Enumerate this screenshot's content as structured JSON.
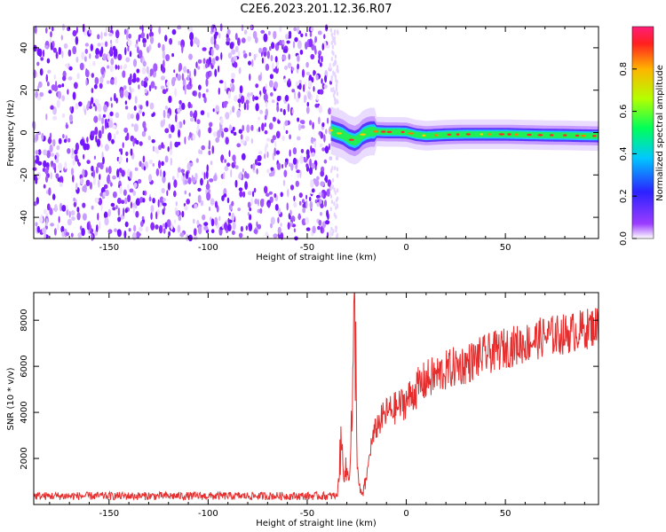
{
  "title": "C2E6.2023.201.12.36.R07",
  "chart_data": [
    {
      "type": "heatmap",
      "xlabel": "Height of straight line (km)",
      "ylabel": "Frequency (Hz)",
      "xlim": [
        -188,
        97
      ],
      "ylim": [
        -50,
        50
      ],
      "xticks": [
        -150,
        -100,
        -50,
        0,
        50
      ],
      "yticks": [
        -40,
        -20,
        0,
        20,
        40
      ],
      "noise_region_x": [
        -188,
        -38
      ],
      "signal_track": {
        "x": [
          -38,
          -35,
          -32,
          -29,
          -26,
          -24,
          -22,
          -20,
          -18,
          -15,
          -10,
          -5,
          0,
          5,
          10,
          20,
          30,
          40,
          50,
          60,
          70,
          80,
          90,
          97
        ],
        "frequency": [
          1,
          0,
          -1,
          -3,
          -4,
          -3,
          -1,
          0,
          0.5,
          0.5,
          0.3,
          0.3,
          0.2,
          -1,
          -1.5,
          -1,
          -0.8,
          -0.8,
          -0.8,
          -1,
          -1.2,
          -1.3,
          -1.5,
          -1.6
        ]
      },
      "colorbar": {
        "label": "Normalized spectral amplitude",
        "range": [
          0,
          1
        ],
        "ticks": [
          "0.0",
          "0.2",
          "0.4",
          "0.6",
          "0.8"
        ],
        "colormap": "hsv-rainbow"
      }
    },
    {
      "type": "line",
      "xlabel": "Height of straight line (km)",
      "ylabel": "SNR (10 * v/v)",
      "xlim": [
        -188,
        97
      ],
      "ylim": [
        0,
        9200
      ],
      "xticks": [
        -150,
        -100,
        -50,
        0,
        50
      ],
      "yticks": [
        2000,
        4000,
        6000,
        8000
      ],
      "series": [
        {
          "color": "#e62e2e",
          "x": [
            -188,
            -150,
            -100,
            -50,
            -35,
            -33,
            -31,
            -29,
            -27,
            -26,
            -25,
            -24,
            -23,
            -22,
            -20,
            -18,
            -15,
            -10,
            -5,
            0,
            5,
            10,
            15,
            20,
            25,
            30,
            35,
            40,
            50,
            60,
            70,
            80,
            90,
            97
          ],
          "y": [
            300,
            300,
            300,
            300,
            300,
            2500,
            1500,
            1200,
            4500,
            9200,
            3000,
            800,
            500,
            400,
            1200,
            2500,
            3400,
            4000,
            4200,
            4500,
            5000,
            5400,
            5600,
            5800,
            6000,
            6100,
            6300,
            6500,
            6800,
            7000,
            7300,
            7400,
            7600,
            7800
          ]
        }
      ]
    }
  ]
}
